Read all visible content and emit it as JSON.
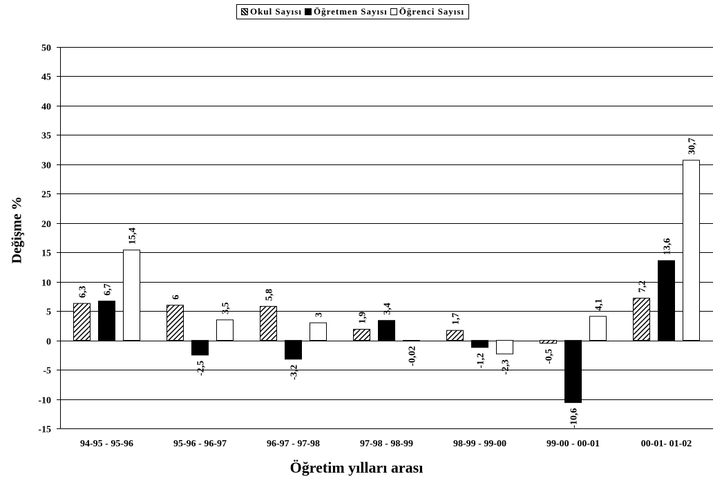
{
  "chart_data": {
    "type": "bar",
    "title": "",
    "xlabel": "Öğretim yılları arası",
    "ylabel": "Değişme %",
    "ylim": [
      -15,
      50
    ],
    "yticks": [
      -15,
      -10,
      -5,
      0,
      5,
      10,
      15,
      20,
      25,
      30,
      35,
      40,
      45,
      50
    ],
    "grid": true,
    "legend_position": "top-center",
    "categories": [
      "94-95 - 95-96",
      "95-96 - 96-97",
      "96-97 - 97-98",
      "97-98 - 98-99",
      "98-99 - 99-00",
      "99-00 - 00-01",
      "00-01- 01-02"
    ],
    "series": [
      {
        "name": "Okul Sayısı",
        "fill": "hatch",
        "values": [
          6.3,
          6,
          5.8,
          1.9,
          1.7,
          -0.5,
          7.2
        ],
        "labels": [
          "6,3",
          "6",
          "5,8",
          "1,9",
          "1,7",
          "-0,5",
          "7,2"
        ]
      },
      {
        "name": "Öğretmen Sayısı",
        "fill": "#000000",
        "values": [
          6.7,
          -2.5,
          -3.2,
          3.4,
          -1.2,
          -10.6,
          13.6
        ],
        "labels": [
          "6,7",
          "-2,5",
          "-3,2",
          "3,4",
          "-1,2",
          "-10,6",
          "13,6"
        ]
      },
      {
        "name": "Öğrenci Sayısı",
        "fill": "#ffffff",
        "values": [
          15.4,
          3.5,
          3,
          -0.02,
          -2.3,
          4.1,
          30.7
        ],
        "labels": [
          "15,4",
          "3,5",
          "3",
          "-0,02",
          "-2,3",
          "4,1",
          "30,7"
        ]
      }
    ]
  }
}
